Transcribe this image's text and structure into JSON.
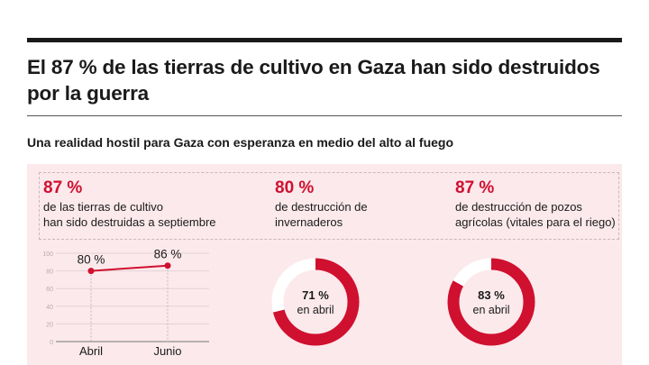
{
  "title": "El 87 % de las tierras de cultivo en Gaza han sido destruidos por la guerra",
  "subtitle": "Una realidad hostil para Gaza con esperanza en medio del alto al fuego",
  "stats": [
    {
      "value": "87 %",
      "line1": "de las tierras de cultivo",
      "line2": "han sido destruidas a septiembre"
    },
    {
      "value": "80 %",
      "line1": "de destrucción de",
      "line2": "invernaderos"
    },
    {
      "value": "87 %",
      "line1": "de destrucción de pozos",
      "line2": "agrícolas (vitales para el riego)"
    }
  ],
  "colors": {
    "accent": "#d0102f",
    "panel": "#fbe9ec"
  },
  "chart_data": [
    {
      "type": "line",
      "categories": [
        "Abril",
        "Junio"
      ],
      "values": [
        80,
        86
      ],
      "data_labels": [
        "80 %",
        "86 %"
      ],
      "ylim": [
        0,
        100
      ],
      "yticks": [
        "0",
        "20",
        "40",
        "60",
        "80",
        "100"
      ],
      "grid": true
    },
    {
      "type": "pie",
      "variant": "donut",
      "value": 71,
      "label_value": "71 %",
      "label_text": "en abril"
    },
    {
      "type": "pie",
      "variant": "donut",
      "value": 83,
      "label_value": "83 %",
      "label_text": "en abril"
    }
  ]
}
